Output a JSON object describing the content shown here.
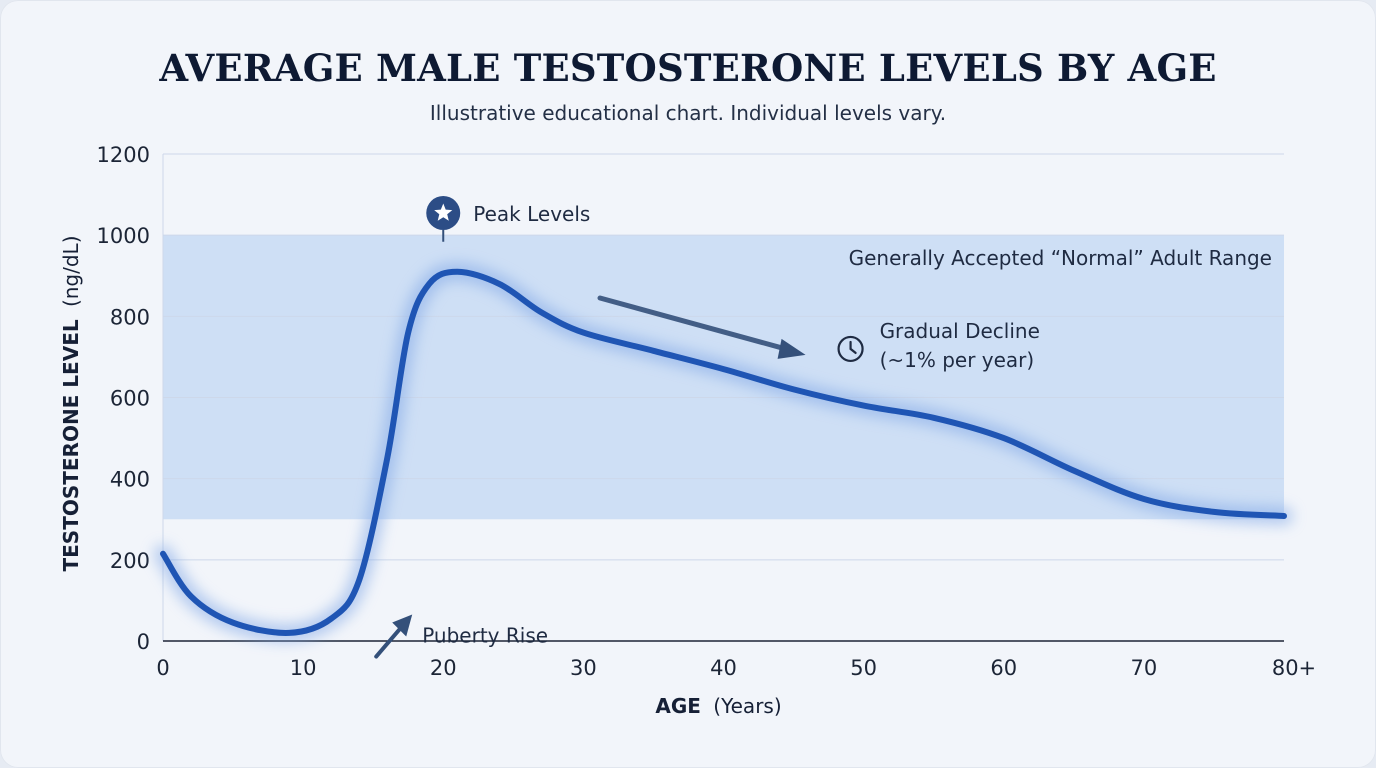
{
  "title": "AVERAGE MALE TESTOSTERONE LEVELS BY AGE",
  "subtitle": "Illustrative educational chart. Individual levels vary.",
  "colors": {
    "curve": "#1f55b4",
    "band": "#c8daf3",
    "annotation": "#34507a",
    "grid": "#cdd8ea",
    "axis": "#1c2536"
  },
  "chart_data": {
    "type": "line",
    "title": "AVERAGE MALE TESTOSTERONE LEVELS BY AGE",
    "subtitle": "Illustrative educational chart. Individual levels vary.",
    "xlabel_bold": "AGE",
    "xlabel_unit": "(Years)",
    "ylabel_bold": "TESTOSTERONE LEVEL",
    "ylabel_unit": "(ng/dL)",
    "xlim": [
      0,
      80
    ],
    "ylim": [
      0,
      1200
    ],
    "xticks": [
      {
        "value": 0,
        "label": "0"
      },
      {
        "value": 10,
        "label": "10"
      },
      {
        "value": 20,
        "label": "20"
      },
      {
        "value": 30,
        "label": "30"
      },
      {
        "value": 40,
        "label": "40"
      },
      {
        "value": 50,
        "label": "50"
      },
      {
        "value": 60,
        "label": "60"
      },
      {
        "value": 70,
        "label": "70"
      },
      {
        "value": 80,
        "label": "80+"
      }
    ],
    "yticks": [
      {
        "value": 0,
        "label": "0"
      },
      {
        "value": 200,
        "label": "200"
      },
      {
        "value": 400,
        "label": "400"
      },
      {
        "value": 600,
        "label": "600"
      },
      {
        "value": 800,
        "label": "800"
      },
      {
        "value": 1000,
        "label": "1000"
      },
      {
        "value": 1200,
        "label": "1200"
      }
    ],
    "grid": true,
    "normal_range": {
      "label": "Generally Accepted “Normal” Adult Range",
      "low": 300,
      "high": 1000
    },
    "series": [
      {
        "x": [
          0,
          2,
          5,
          9,
          12,
          14,
          16,
          17.5,
          19,
          21,
          24,
          27,
          30,
          35,
          40,
          45,
          50,
          55,
          60,
          65,
          70,
          75,
          80
        ],
        "y": [
          215,
          110,
          45,
          20,
          55,
          150,
          450,
          760,
          880,
          910,
          880,
          810,
          760,
          715,
          670,
          620,
          580,
          550,
          500,
          420,
          350,
          318,
          308
        ]
      }
    ],
    "annotations": {
      "peak": {
        "label": "Peak Levels",
        "x": 20,
        "y": 900
      },
      "decline": {
        "line1": "Gradual Decline",
        "line2": "(~1% per year)",
        "x": 46,
        "y": 700
      },
      "puberty": {
        "label": "Puberty Rise",
        "x": 17.5,
        "y": 80
      }
    }
  }
}
